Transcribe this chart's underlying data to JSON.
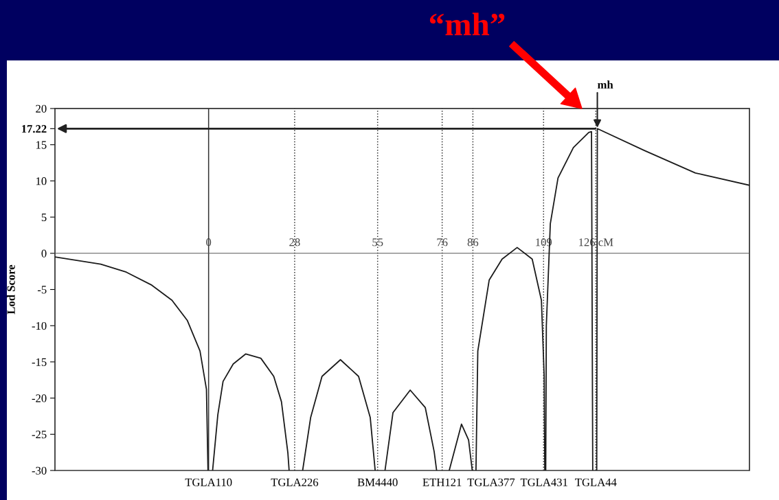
{
  "chart_data": {
    "type": "line",
    "ylabel": "Lod Score",
    "xlim": [
      -50,
      176
    ],
    "ylim": [
      -30,
      20
    ],
    "yticks": [
      -30,
      -25,
      -20,
      -15,
      -10,
      -5,
      0,
      5,
      10,
      15,
      {
        "value": 17.22,
        "label": "17.22"
      },
      20
    ],
    "xticks": [
      0,
      28,
      55,
      76,
      86,
      109,
      {
        "value": 126,
        "label": "126 cM"
      }
    ],
    "grid": false,
    "marker": "none",
    "line_style": "solid",
    "series": [
      {
        "color": "#1a1a1a",
        "x": [
          -50,
          -35.1,
          -26.8,
          -18.5,
          -11.9,
          -6.9,
          -2.8,
          -0.7,
          -0.2,
          0.5,
          1.3,
          3.0,
          4.7,
          8.0,
          12.1,
          17.0,
          21.2,
          23.7,
          25.8,
          26.2,
          27,
          30.6,
          33.2,
          36.9,
          42.9,
          48.8,
          52.6,
          54.2,
          55,
          57.4,
          60.0,
          65.6,
          70.5,
          73.4,
          74.2,
          76,
          78.3,
          82.3,
          84.6,
          85.8,
          86.4,
          87.0,
          87.6,
          91.3,
          95.5,
          100.4,
          105.3,
          108.3,
          109.2,
          109.4,
          109.55,
          109.7,
          109.9,
          111.2,
          113.7,
          118.7,
          123.7,
          124.6,
          125.0,
          125.6,
          126.3,
          126.5,
          141.8,
          158.4,
          176
        ],
        "values": [
          -0.5,
          -1.5,
          -2.6,
          -4.4,
          -6.5,
          -9.3,
          -13.5,
          -18.8,
          -30,
          null,
          -30,
          -22.3,
          -17.7,
          -15.3,
          -13.9,
          -14.5,
          -17.0,
          -20.5,
          -27.6,
          -30,
          null,
          -30,
          -22.7,
          -17.0,
          -14.7,
          -17.0,
          -22.7,
          -30,
          null,
          -30,
          -22.0,
          -18.9,
          -21.3,
          -27.4,
          -30,
          null,
          -30,
          -23.6,
          -25.8,
          -30,
          null,
          -30,
          -13.5,
          -3.7,
          -0.8,
          0.8,
          -0.8,
          -6.5,
          -17,
          -30,
          null,
          -30,
          -10,
          4.1,
          10.4,
          14.6,
          16.7,
          16.8,
          -30,
          null,
          -30,
          17.22,
          14.2,
          11.1,
          9.4
        ]
      }
    ],
    "ref_lines": [
      {
        "axis": "x",
        "value": 0,
        "color": "#333333",
        "line_style": "solid"
      },
      {
        "axis": "x",
        "value": 28,
        "color": "#333333",
        "line_style": "dotted"
      },
      {
        "axis": "x",
        "value": 55,
        "color": "#333333",
        "line_style": "dotted"
      },
      {
        "axis": "x",
        "value": 76,
        "color": "#333333",
        "line_style": "dotted"
      },
      {
        "axis": "x",
        "value": 86,
        "color": "#333333",
        "line_style": "dotted"
      },
      {
        "axis": "x",
        "value": 109,
        "color": "#333333",
        "line_style": "dotted"
      },
      {
        "axis": "x",
        "value": 126,
        "color": "#333333",
        "line_style": "dotted"
      }
    ],
    "annotations": [
      {
        "text": "mh",
        "x": 126.5,
        "y": 17.22
      },
      "“mh”",
      "TGLA110",
      "TGLA226",
      "BM4440",
      "ETH121",
      "TGLA377",
      "TGLA431",
      "TGLA44"
    ]
  }
}
